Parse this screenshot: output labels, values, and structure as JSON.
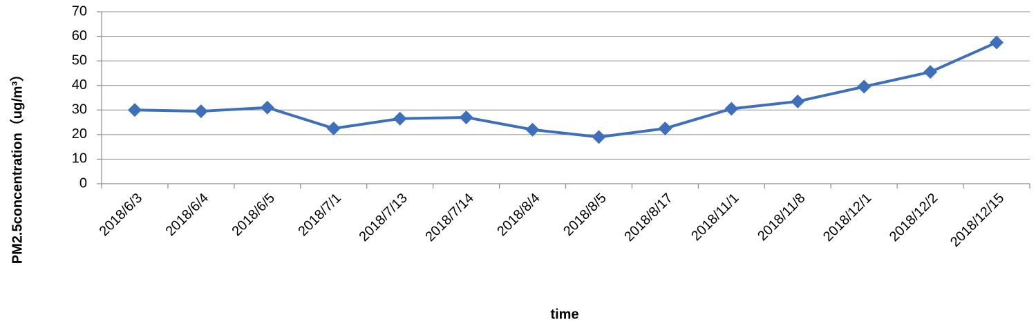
{
  "chart_data": {
    "type": "line",
    "y_label": "PM2.5concentration（ug/m³）",
    "x_label": "time",
    "categories": [
      "2018/6/3",
      "2018/6/4",
      "2018/6/5",
      "2018/7/1",
      "2018/7/13",
      "2018/7/14",
      "2018/8/4",
      "2018/8/5",
      "2018/8/17",
      "2018/11/1",
      "2018/11/8",
      "2018/12/1",
      "2018/12/2",
      "2018/12/15"
    ],
    "values": [
      30,
      29.5,
      31,
      22.5,
      26.5,
      27,
      22,
      19,
      22.5,
      30.5,
      33.5,
      39.5,
      45.5,
      57.5
    ],
    "color": "#3d6fbb",
    "ylim": [
      0,
      70
    ],
    "yticks": [
      0,
      10,
      20,
      30,
      40,
      50,
      60,
      70
    ],
    "grid": true
  }
}
